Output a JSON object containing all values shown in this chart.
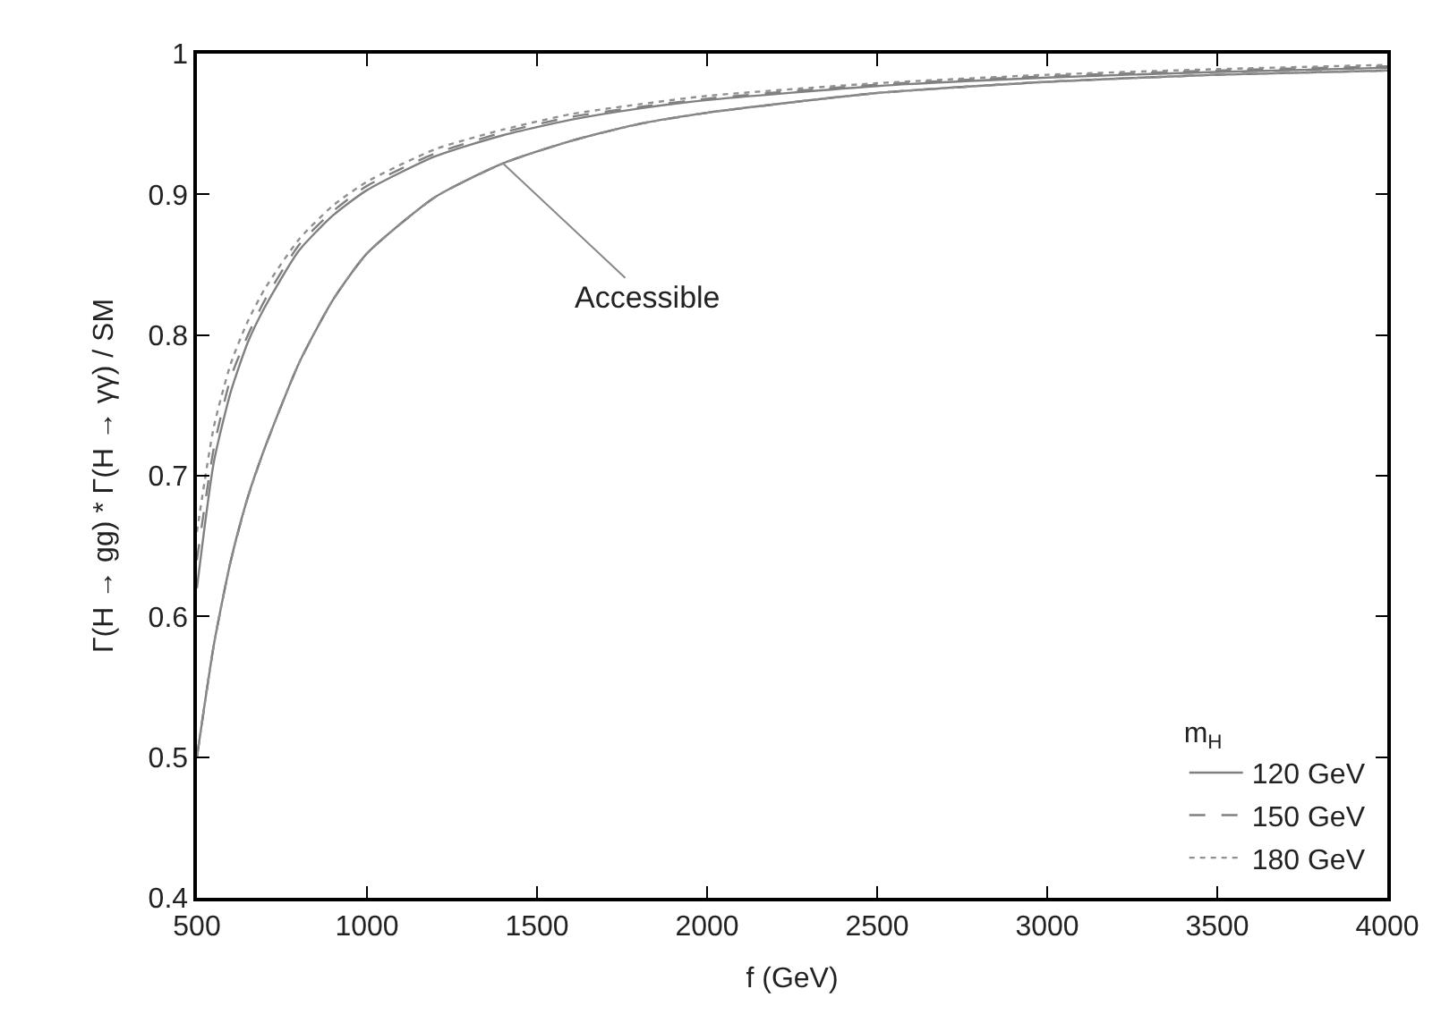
{
  "chart_data": {
    "type": "line",
    "xlabel": "f (GeV)",
    "ylabel": "Γ(H → gg) * Γ(H → γγ) / SM",
    "legend_title": "m$_{H}$",
    "legend": "bottom right",
    "marker": "none",
    "x": [
      500,
      550,
      600,
      650,
      700,
      800,
      900,
      1000,
      1200,
      1400,
      1600,
      1800,
      2000,
      2500,
      3000,
      3500,
      4000
    ],
    "xlim": [
      500,
      4000
    ],
    "xticks": [
      500,
      1000,
      1500,
      2000,
      2500,
      3000,
      3500,
      4000
    ],
    "ylim": [
      0.4,
      1
    ],
    "yticks": [
      0.4,
      0.5,
      0.6,
      0.7,
      0.8,
      0.9,
      1
    ],
    "annotations": [
      {
        "text": "Accessible",
        "x": 1400,
        "y": 0.922
      }
    ],
    "series": [
      {
        "name": "120 GeV",
        "color": "#808080",
        "line_style": "solid",
        "values": [
          0.62,
          0.71,
          0.76,
          0.795,
          0.82,
          0.86,
          0.885,
          0.903,
          0.927,
          0.942,
          0.953,
          0.961,
          0.967,
          0.977,
          0.983,
          0.987,
          0.99
        ]
      },
      {
        "name": "150 GeV",
        "color": "#808080",
        "line_style": "dashed",
        "values": [
          0.64,
          0.72,
          0.77,
          0.8,
          0.825,
          0.864,
          0.888,
          0.906,
          0.929,
          0.944,
          0.955,
          0.962,
          0.968,
          0.978,
          0.984,
          0.988,
          0.991
        ]
      },
      {
        "name": "180 GeV",
        "color": "#909090",
        "line_style": "dotted",
        "values": [
          0.66,
          0.735,
          0.78,
          0.81,
          0.833,
          0.868,
          0.892,
          0.909,
          0.932,
          0.946,
          0.957,
          0.964,
          0.97,
          0.979,
          0.985,
          0.989,
          0.992
        ]
      },
      {
        "color": "#808080",
        "line_style": "solid",
        "values": [
          0.5,
          0.58,
          0.64,
          0.685,
          0.72,
          0.78,
          0.825,
          0.858,
          0.898,
          0.922,
          0.938,
          0.95,
          0.958,
          0.972,
          0.98,
          0.985,
          0.988
        ]
      },
      {
        "color": "#808080",
        "line_style": "dashed",
        "values": [
          0.5,
          0.58,
          0.64,
          0.685,
          0.72,
          0.78,
          0.825,
          0.858,
          0.898,
          0.922,
          0.938,
          0.95,
          0.958,
          0.972,
          0.98,
          0.985,
          0.988
        ]
      },
      {
        "color": "#909090",
        "line_style": "dotted",
        "values": [
          0.5,
          0.58,
          0.64,
          0.685,
          0.72,
          0.78,
          0.825,
          0.858,
          0.898,
          0.922,
          0.938,
          0.95,
          0.958,
          0.972,
          0.98,
          0.985,
          0.988
        ]
      }
    ]
  }
}
